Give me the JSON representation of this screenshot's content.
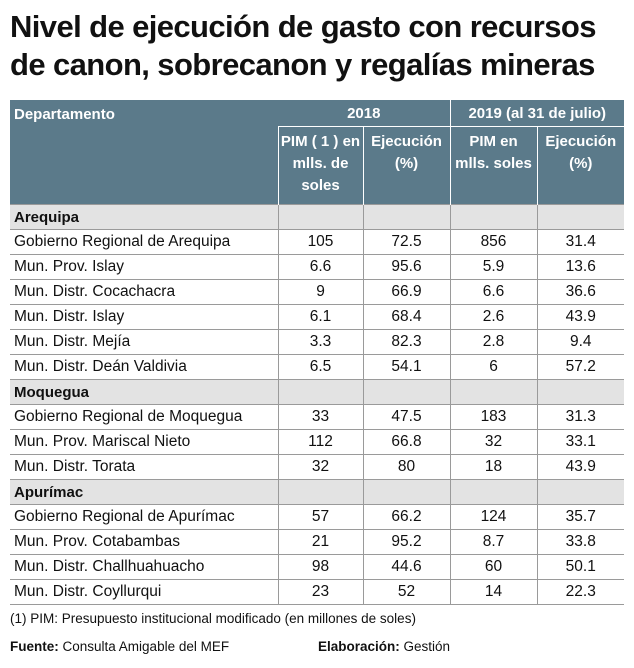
{
  "title": "Nivel de ejecución de gasto con recursos de canon, sobrecanon y regalías mineras",
  "header": {
    "year_2018": "2018",
    "year_2019": "2019 (al 31 de julio)",
    "col_dept": "Departamento",
    "col_pim_2018": "PIM ( 1 ) en mlls. de soles",
    "col_ejec_2018": "Ejecución (%)",
    "col_pim_2019": "PIM en mlls. soles",
    "col_ejec_2019": "Ejecución (%)"
  },
  "groups": [
    {
      "name": "Arequipa",
      "rows": [
        [
          "Gobierno Regional de Arequipa",
          "105",
          "72.5",
          "856",
          "31.4"
        ],
        [
          "Mun. Prov. Islay",
          "6.6",
          "95.6",
          "5.9",
          "13.6"
        ],
        [
          "Mun. Distr. Cocachacra",
          "9",
          "66.9",
          "6.6",
          "36.6"
        ],
        [
          "Mun. Distr. Islay",
          "6.1",
          "68.4",
          "2.6",
          "43.9"
        ],
        [
          "Mun. Distr. Mejía",
          "3.3",
          "82.3",
          "2.8",
          "9.4"
        ],
        [
          "Mun. Distr. Deán Valdivia",
          "6.5",
          "54.1",
          "6",
          "57.2"
        ]
      ]
    },
    {
      "name": "Moquegua",
      "rows": [
        [
          "Gobierno Regional de Moquegua",
          "33",
          "47.5",
          "183",
          "31.3"
        ],
        [
          "Mun. Prov. Mariscal Nieto",
          "112",
          "66.8",
          "32",
          "33.1"
        ],
        [
          "Mun. Distr. Torata",
          "32",
          "80",
          "18",
          "43.9"
        ]
      ]
    },
    {
      "name": "Apurímac",
      "rows": [
        [
          "Gobierno Regional de Apurímac",
          "57",
          "66.2",
          "124",
          "35.7"
        ],
        [
          "Mun. Prov. Cotabambas",
          "21",
          "95.2",
          "8.7",
          "33.8"
        ],
        [
          "Mun. Distr. Challhuahuacho",
          "98",
          "44.6",
          "60",
          "50.1"
        ],
        [
          "Mun. Distr. Coyllurqui",
          "23",
          "52",
          "14",
          "22.3"
        ]
      ]
    }
  ],
  "footnote": "(1) PIM: Presupuesto institucional modificado (en millones de soles)",
  "source_label": "Fuente:",
  "source_value": "Consulta Amigable del MEF",
  "elab_label": "Elaboración:",
  "elab_value": "Gestión"
}
